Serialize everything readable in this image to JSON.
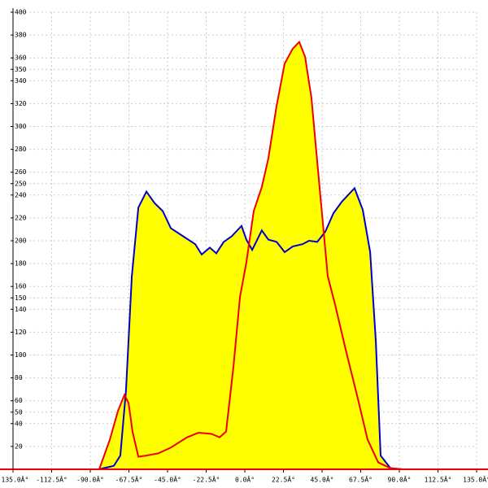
{
  "chart_data": {
    "type": "area",
    "fill": "#ffff00",
    "grid": true,
    "xlim": [
      -135,
      135
    ],
    "xticks": [
      {
        "value": -135,
        "label": "-135.0Â°"
      },
      {
        "value": -112.5,
        "label": "-112.5Â°"
      },
      {
        "value": -90,
        "label": "-90.0Â°"
      },
      {
        "value": -67.5,
        "label": "-67.5Â°"
      },
      {
        "value": -45,
        "label": "-45.0Â°"
      },
      {
        "value": -22.5,
        "label": "-22.5Â°"
      },
      {
        "value": 0,
        "label": "0.0Â°"
      },
      {
        "value": 22.5,
        "label": "22.5Â°"
      },
      {
        "value": 45,
        "label": "45.0Â°"
      },
      {
        "value": 67.5,
        "label": "67.5Â°"
      },
      {
        "value": 90,
        "label": "90.0Â°"
      },
      {
        "value": 112.5,
        "label": "112.5Â°"
      },
      {
        "value": 135,
        "label": "135.0Â°"
      }
    ],
    "ylim": [
      0,
      400
    ],
    "yticks": [
      20,
      40,
      50,
      60,
      80,
      100,
      120,
      140,
      150,
      160,
      180,
      200,
      220,
      240,
      250,
      260,
      280,
      300,
      320,
      340,
      350,
      360,
      380,
      400
    ],
    "series": [
      {
        "color": "#0000cc",
        "x": [
          -84.8,
          -76.3,
          -72.5,
          -69.2,
          -65.8,
          -62,
          -57.3,
          -52.6,
          -47.8,
          -43.1,
          -36,
          -28.9,
          -25.1,
          -20.4,
          -16.6,
          -12.3,
          -7.6,
          -1.9,
          0.9,
          4.3,
          9.9,
          13.7,
          18.5,
          23.2,
          27.9,
          33.6,
          37.4,
          42.2,
          46.9,
          51.6,
          56.4,
          63.9,
          68.7,
          73,
          76.3,
          79.1,
          84.8,
          91.9
        ],
        "values": [
          0,
          3,
          12,
          69,
          169,
          229,
          243,
          233,
          226,
          211,
          204,
          197,
          188,
          194,
          189,
          199,
          204,
          213,
          201,
          192,
          209,
          201,
          199,
          190,
          195,
          197,
          200,
          199,
          208,
          224,
          234,
          246,
          227,
          190,
          112,
          12,
          1,
          0
        ]
      },
      {
        "color": "#ee0000",
        "x": [
          -84.8,
          -78.6,
          -73.9,
          -70.1,
          -67.7,
          -65.4,
          -62,
          -57.3,
          -50.2,
          -43.1,
          -33.6,
          -27,
          -19.4,
          -14.7,
          -10.9,
          -6.6,
          -2.8,
          0.9,
          5.2,
          9.9,
          13.7,
          18.5,
          23.2,
          27.9,
          31.7,
          35.1,
          38.8,
          43.1,
          48.3,
          52.6,
          58.7,
          65.8,
          71.5,
          77.7,
          84.8,
          91.9
        ],
        "values": [
          0,
          26,
          51,
          65,
          58,
          33,
          11,
          12,
          14,
          19,
          28,
          32,
          31,
          28,
          33,
          90,
          151,
          181,
          226,
          247,
          272,
          318,
          355,
          368,
          374,
          361,
          325,
          254,
          169,
          144,
          105,
          62,
          26,
          6,
          1,
          0
        ]
      }
    ]
  }
}
